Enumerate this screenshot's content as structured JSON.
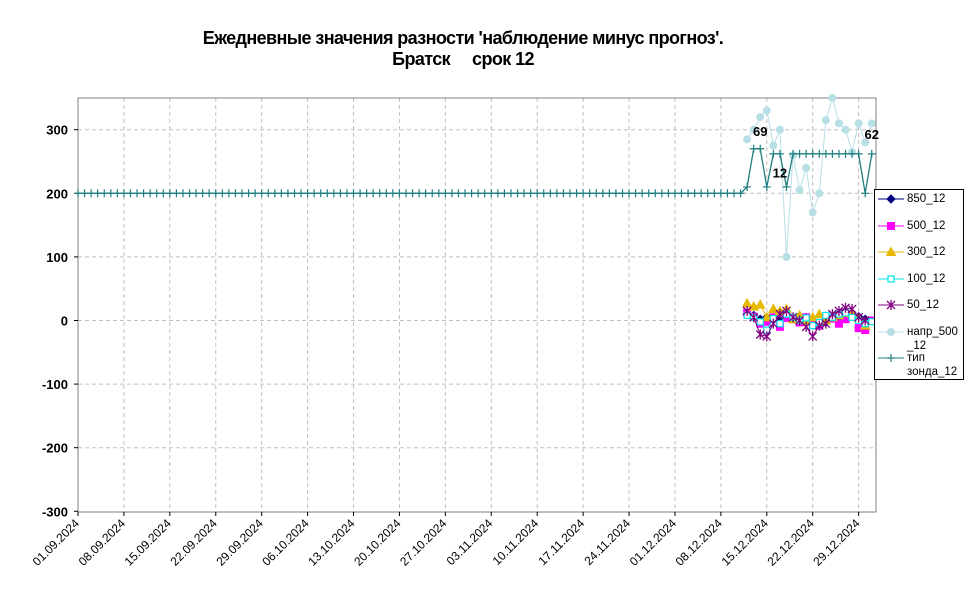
{
  "title": {
    "line1": "Ежедневные значения разности 'наблюдение минус прогноз'.",
    "line2": "Братск     срок 12"
  },
  "colors": {
    "850_12": "#000080",
    "500_12": "#ff00ff",
    "300_12": "#e6b800",
    "100_12": "#00e5e5",
    "50_12": "#800080",
    "napr": "#b8dfe6",
    "tip": "#1f7f80",
    "grid": "#c0c0c0"
  },
  "chart_data": {
    "type": "line",
    "title": "Ежедневные значения разности 'наблюдение минус прогноз'. Братск срок 12",
    "xlabel": "",
    "ylabel": "",
    "ylim": [
      -300,
      350
    ],
    "yticks": [
      -300,
      -200,
      -100,
      0,
      100,
      200,
      300
    ],
    "x_start": "01.09.2024",
    "x_end": "02.01.2025",
    "xticks": [
      "01.09.2024",
      "08.09.2024",
      "15.09.2024",
      "22.09.2024",
      "29.09.2024",
      "06.10.2024",
      "13.10.2024",
      "20.10.2024",
      "27.10.2024",
      "03.11.2024",
      "10.11.2024",
      "17.11.2024",
      "24.11.2024",
      "01.12.2024",
      "08.12.2024",
      "15.12.2024",
      "22.12.2024",
      "29.12.2024"
    ],
    "grid": true,
    "legend_position": "right",
    "series": [
      {
        "name": "850_12",
        "marker": "diamond",
        "x": [
          "12.12.2024",
          "13.12.2024",
          "14.12.2024",
          "15.12.2024",
          "16.12.2024",
          "17.12.2024",
          "18.12.2024",
          "19.12.2024",
          "20.12.2024",
          "21.12.2024",
          "22.12.2024",
          "23.12.2024",
          "24.12.2024",
          "25.12.2024",
          "26.12.2024",
          "27.12.2024",
          "28.12.2024",
          "29.12.2024",
          "30.12.2024"
        ],
        "values": [
          10,
          8,
          2,
          5,
          3,
          0,
          6,
          4,
          2,
          5,
          0,
          -5,
          -3,
          5,
          4,
          8,
          10,
          6,
          2
        ]
      },
      {
        "name": "500_12",
        "marker": "square",
        "x": [
          "12.12.2024",
          "13.12.2024",
          "14.12.2024",
          "15.12.2024",
          "16.12.2024",
          "17.12.2024",
          "18.12.2024",
          "19.12.2024",
          "20.12.2024",
          "21.12.2024",
          "22.12.2024",
          "23.12.2024",
          "24.12.2024",
          "25.12.2024",
          "26.12.2024",
          "27.12.2024",
          "28.12.2024",
          "29.12.2024",
          "30.12.2024",
          "31.12.2024"
        ],
        "values": [
          12,
          6,
          -5,
          -2,
          5,
          -10,
          4,
          2,
          -3,
          5,
          -5,
          -8,
          5,
          3,
          -5,
          2,
          8,
          -12,
          -15,
          0
        ]
      },
      {
        "name": "300_12",
        "marker": "triangle",
        "x": [
          "12.12.2024",
          "13.12.2024",
          "14.12.2024",
          "15.12.2024",
          "16.12.2024",
          "17.12.2024",
          "18.12.2024",
          "19.12.2024",
          "20.12.2024",
          "21.12.2024",
          "22.12.2024",
          "23.12.2024",
          "24.12.2024",
          "25.12.2024",
          "26.12.2024",
          "27.12.2024",
          "28.12.2024",
          "29.12.2024",
          "30.12.2024"
        ],
        "values": [
          27,
          22,
          25,
          5,
          18,
          15,
          18,
          2,
          8,
          0,
          5,
          10,
          0,
          5,
          8,
          12,
          10,
          4,
          -8
        ]
      },
      {
        "name": "100_12",
        "marker": "open-square",
        "x": [
          "12.12.2024",
          "13.12.2024",
          "14.12.2024",
          "15.12.2024",
          "16.12.2024",
          "17.12.2024",
          "18.12.2024",
          "19.12.2024",
          "20.12.2024",
          "21.12.2024",
          "22.12.2024",
          "23.12.2024",
          "24.12.2024",
          "25.12.2024",
          "26.12.2024",
          "27.12.2024",
          "28.12.2024",
          "29.12.2024",
          "30.12.2024",
          "31.12.2024"
        ],
        "values": [
          8,
          5,
          -2,
          -15,
          3,
          -5,
          10,
          5,
          0,
          4,
          -8,
          -3,
          8,
          5,
          10,
          12,
          5,
          0,
          -5,
          -2
        ]
      },
      {
        "name": "50_12",
        "marker": "star",
        "x": [
          "12.12.2024",
          "13.12.2024",
          "14.12.2024",
          "15.12.2024",
          "16.12.2024",
          "17.12.2024",
          "18.12.2024",
          "19.12.2024",
          "20.12.2024",
          "21.12.2024",
          "22.12.2024",
          "23.12.2024",
          "24.12.2024",
          "25.12.2024",
          "26.12.2024",
          "27.12.2024",
          "28.12.2024",
          "29.12.2024",
          "30.12.2024"
        ],
        "values": [
          15,
          5,
          -22,
          -25,
          -5,
          10,
          15,
          5,
          0,
          -10,
          -25,
          -8,
          -5,
          10,
          15,
          20,
          18,
          5,
          0
        ]
      },
      {
        "name": "напр_500_12",
        "marker": "circle",
        "x": [
          "12.12.2024",
          "13.12.2024",
          "14.12.2024",
          "15.12.2024",
          "16.12.2024",
          "17.12.2024",
          "18.12.2024",
          "19.12.2024",
          "20.12.2024",
          "21.12.2024",
          "22.12.2024",
          "23.12.2024",
          "24.12.2024",
          "25.12.2024",
          "26.12.2024",
          "27.12.2024",
          "28.12.2024",
          "29.12.2024",
          "30.12.2024",
          "31.12.2024"
        ],
        "values": [
          285,
          300,
          320,
          330,
          275,
          300,
          100,
          260,
          205,
          240,
          170,
          200,
          315,
          350,
          310,
          300,
          265,
          310,
          280,
          310
        ]
      },
      {
        "name": "тип зонда_12",
        "marker": "plus",
        "x_from": "01.09.2024",
        "x_to": "31.12.2024",
        "constant_value": 200,
        "constant_through": "11.12.2024",
        "x_tail": [
          "12.12.2024",
          "13.12.2024",
          "14.12.2024",
          "15.12.2024",
          "16.12.2024",
          "17.12.2024",
          "18.12.2024",
          "19.12.2024",
          "20.12.2024",
          "21.12.2024",
          "22.12.2024",
          "23.12.2024",
          "24.12.2024",
          "25.12.2024",
          "26.12.2024",
          "27.12.2024",
          "28.12.2024",
          "29.12.2024",
          "30.12.2024",
          "31.12.2024"
        ],
        "tail": [
          210,
          270,
          270,
          210,
          262,
          262,
          210,
          262,
          262,
          262,
          262,
          262,
          262,
          262,
          262,
          262,
          262,
          262,
          200,
          262
        ]
      }
    ],
    "annotations": [
      {
        "text": "69",
        "x": "14.12.2024",
        "y": 290
      },
      {
        "text": "12",
        "x": "17.12.2024",
        "y": 225
      },
      {
        "text": "62",
        "x": "31.12.2024",
        "y": 285
      }
    ]
  },
  "legend": {
    "items": [
      {
        "label": "850_12",
        "series": "850_12"
      },
      {
        "label": "500_12",
        "series": "500_12"
      },
      {
        "label": "300_12",
        "series": "300_12"
      },
      {
        "label": "100_12",
        "series": "100_12"
      },
      {
        "label": "50_12",
        "series": "50_12"
      },
      {
        "label": "напр_500 _12",
        "series": "napr"
      },
      {
        "label": "тип зонда_12",
        "series": "tip"
      }
    ]
  }
}
